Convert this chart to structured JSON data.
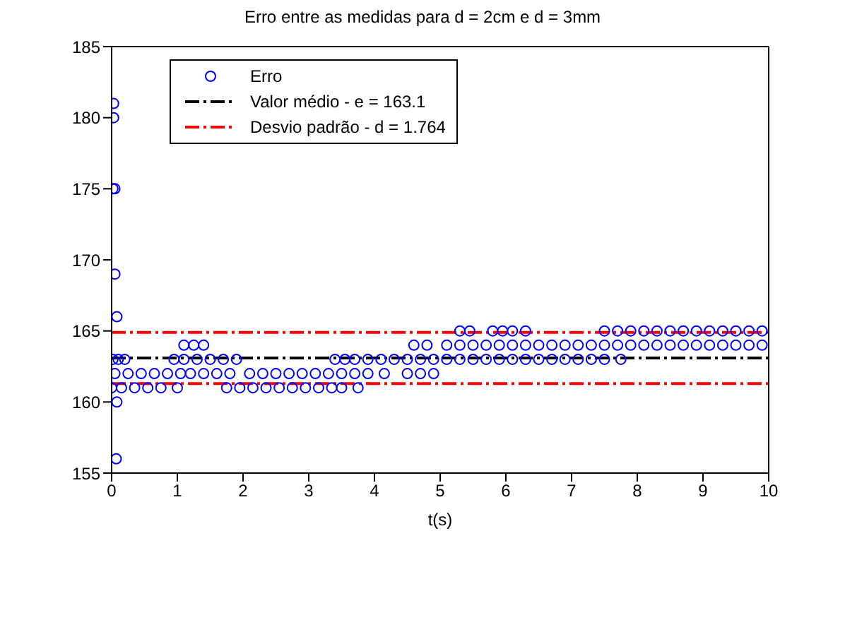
{
  "chart_data": {
    "type": "scatter",
    "title": "Erro entre as medidas para d = 2cm e d = 3mm",
    "xlabel": "t(s)",
    "xlim": [
      0,
      10
    ],
    "xticks": [
      0,
      1,
      2,
      3,
      4,
      5,
      6,
      7,
      8,
      9,
      10
    ],
    "ylim": [
      155,
      185
    ],
    "yticks": [
      155,
      160,
      165,
      170,
      175,
      180,
      185
    ],
    "legend": "top left",
    "series": [
      {
        "name": "Erro",
        "marker": "circle",
        "color": "#0000ff",
        "x": [
          0.03,
          0.03,
          0.02,
          0.05,
          0.05,
          0.08,
          0.08,
          0.07,
          5.3,
          5.45,
          5.8,
          5.95,
          6.1,
          6.3,
          7.5,
          7.7,
          7.9,
          8.1,
          8.3,
          8.5,
          8.7,
          8.9,
          9.1,
          9.3,
          9.5,
          9.7,
          9.9,
          1.1,
          1.25,
          1.4,
          4.6,
          4.8,
          5.1,
          5.3,
          5.5,
          5.7,
          5.9,
          6.1,
          6.3,
          6.5,
          6.7,
          6.9,
          7.1,
          7.3,
          7.5,
          7.7,
          7.9,
          8.1,
          8.3,
          8.5,
          8.7,
          8.9,
          9.1,
          9.3,
          9.5,
          9.7,
          9.9,
          0.02,
          0.1,
          0.2,
          0.95,
          1.1,
          1.3,
          1.5,
          1.7,
          1.9,
          3.4,
          3.55,
          3.7,
          3.9,
          4.1,
          4.3,
          4.5,
          4.7,
          4.9,
          5.1,
          5.3,
          5.5,
          5.7,
          5.9,
          6.1,
          6.3,
          6.5,
          6.7,
          6.9,
          7.1,
          7.3,
          7.5,
          7.75,
          0.05,
          0.25,
          0.45,
          0.65,
          0.85,
          1.05,
          1.2,
          1.4,
          1.6,
          1.8,
          2.1,
          2.3,
          2.5,
          2.7,
          2.9,
          3.1,
          3.3,
          3.5,
          3.7,
          3.9,
          4.15,
          4.5,
          4.7,
          4.9,
          0,
          0.15,
          0.35,
          0.55,
          0.75,
          1,
          1.75,
          1.95,
          2.15,
          2.35,
          2.55,
          2.75,
          2.95,
          3.15,
          3.35,
          3.5,
          3.75
        ],
        "values": [
          181,
          180,
          175,
          175,
          169,
          166,
          160,
          156,
          165,
          165,
          165,
          165,
          165,
          165,
          165,
          165,
          165,
          165,
          165,
          165,
          165,
          165,
          165,
          165,
          165,
          165,
          165,
          164,
          164,
          164,
          164,
          164,
          164,
          164,
          164,
          164,
          164,
          164,
          164,
          164,
          164,
          164,
          164,
          164,
          164,
          164,
          164,
          164,
          164,
          164,
          164,
          164,
          164,
          164,
          164,
          164,
          164,
          163,
          163,
          163,
          163,
          163,
          163,
          163,
          163,
          163,
          163,
          163,
          163,
          163,
          163,
          163,
          163,
          163,
          163,
          163,
          163,
          163,
          163,
          163,
          163,
          163,
          163,
          163,
          163,
          163,
          163,
          163,
          163,
          162,
          162,
          162,
          162,
          162,
          162,
          162,
          162,
          162,
          162,
          162,
          162,
          162,
          162,
          162,
          162,
          162,
          162,
          162,
          162,
          162,
          162,
          162,
          162,
          161,
          161,
          161,
          161,
          161,
          161,
          161,
          161,
          161,
          161,
          161,
          161,
          161,
          161,
          161,
          161,
          161
        ]
      },
      {
        "name": "Valor médio - e = 163.1",
        "type": "line",
        "marker": "none",
        "line_style": "dashed",
        "color": "#000000",
        "x": [
          0,
          10
        ],
        "values": [
          163.1,
          163.1
        ]
      },
      {
        "name": "Desvio padrão - d = 1.764",
        "type": "line",
        "marker": "none",
        "line_style": "dashed",
        "color": "#ff0000",
        "x": [
          0,
          10
        ],
        "values": [
          164.9,
          164.9
        ]
      },
      {
        "type": "line",
        "marker": "none",
        "line_style": "dashed",
        "color": "#ff0000",
        "x": [
          0,
          10
        ],
        "values": [
          161.3,
          161.3
        ]
      }
    ]
  }
}
